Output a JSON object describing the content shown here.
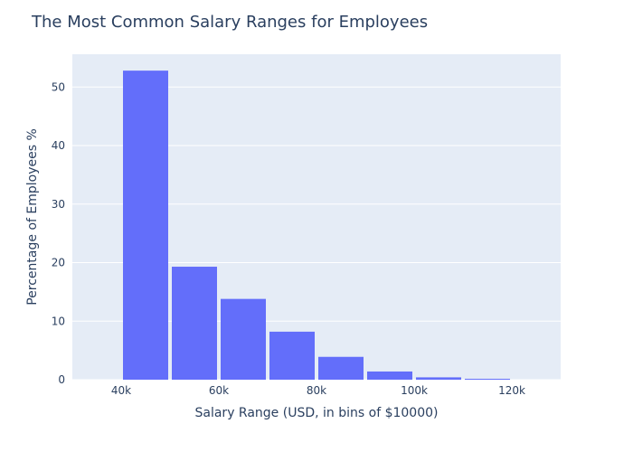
{
  "chart_data": {
    "type": "bar",
    "title": "The Most Common Salary Ranges for Employees",
    "xlabel": "Salary Range (USD, in bins of $10000)",
    "ylabel": "Percentage of Employees %",
    "bin_edges": [
      40000,
      50000,
      60000,
      70000,
      80000,
      90000,
      100000,
      110000,
      120000
    ],
    "values": [
      52.8,
      19.3,
      13.8,
      8.2,
      3.9,
      1.4,
      0.4,
      0.15
    ],
    "xlim": [
      30000,
      130000
    ],
    "ylim": [
      0,
      55.6
    ],
    "x_ticks": [
      40000,
      60000,
      80000,
      100000,
      120000
    ],
    "x_tick_labels": [
      "40k",
      "60k",
      "80k",
      "100k",
      "120k"
    ],
    "y_ticks": [
      0,
      10,
      20,
      30,
      40,
      50
    ],
    "y_tick_labels": [
      "0",
      "10",
      "20",
      "30",
      "40",
      "50"
    ],
    "grid": true,
    "colors": {
      "bar": "#636efa",
      "plot_bg": "#e5ecf6",
      "text": "#2a3f5f",
      "grid": "#ffffff"
    }
  }
}
